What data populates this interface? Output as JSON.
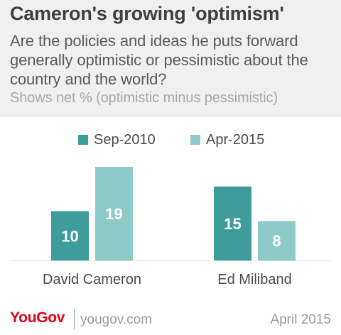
{
  "title": "Cameron's growing 'optimism'",
  "subtitle": "Are the policies and ideas he puts forward generally optimistic or pessimistic about the country and the world?",
  "note": "Shows net % (optimistic minus pessimistic)",
  "colors": {
    "series1": "#3e9c9a",
    "series2": "#8ecac7",
    "header_bg": "#f0f0f0",
    "brand": "#e1001a"
  },
  "chart_data": {
    "type": "bar",
    "categories": [
      "David Cameron",
      "Ed Miliband"
    ],
    "series": [
      {
        "name": "Sep-2010",
        "values": [
          10,
          15
        ]
      },
      {
        "name": "Apr-2015",
        "values": [
          19,
          8
        ]
      }
    ],
    "ylim": [
      0,
      19
    ],
    "grid": false,
    "legend_position": "top",
    "xlabel": "",
    "ylabel": ""
  },
  "footer": {
    "brand": "YouGov",
    "url": "yougov.com",
    "date": "April 2015"
  }
}
